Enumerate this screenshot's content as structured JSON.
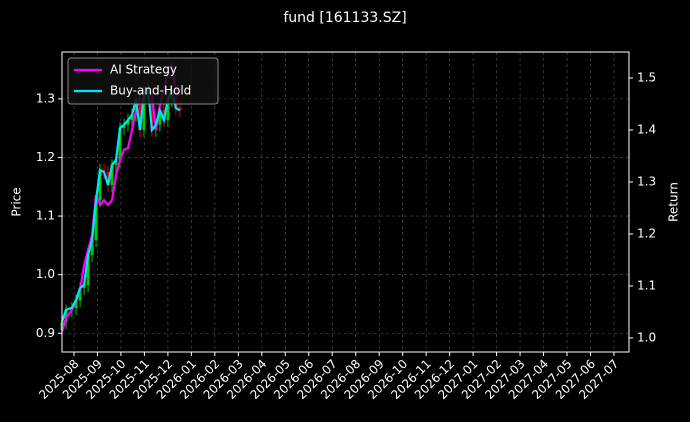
{
  "chart_data": {
    "type": "candlestick",
    "title": "fund [161133.SZ]",
    "ylabel": "Price",
    "y2label": "Return",
    "x": [
      -0.51,
      -0.34,
      -0.09,
      0.09,
      0.26,
      0.43,
      0.6,
      0.77,
      0.94,
      1.11,
      1.28,
      1.45,
      1.62,
      1.79,
      1.96,
      2.13,
      2.3,
      2.47,
      2.64,
      2.81,
      2.98,
      3.15,
      3.32,
      3.49,
      3.66,
      3.83,
      4.0,
      4.17,
      4.34,
      4.51
    ],
    "open": [
      0.905,
      0.919,
      0.939,
      0.943,
      0.956,
      0.977,
      0.982,
      1.033,
      1.059,
      1.127,
      1.179,
      1.175,
      1.153,
      1.187,
      1.196,
      1.25,
      1.256,
      1.264,
      1.273,
      1.298,
      1.247,
      1.307,
      1.319,
      1.247,
      1.256,
      1.281,
      1.264,
      1.298,
      1.315,
      1.285
    ],
    "high": [
      0.929,
      0.949,
      0.953,
      0.966,
      0.987,
      0.992,
      1.043,
      1.069,
      1.137,
      1.189,
      1.189,
      1.185,
      1.197,
      1.206,
      1.26,
      1.266,
      1.274,
      1.283,
      1.308,
      1.308,
      1.317,
      1.329,
      1.329,
      1.266,
      1.291,
      1.291,
      1.308,
      1.325,
      1.325,
      1.295
    ],
    "low": [
      0.875,
      0.907,
      0.927,
      0.931,
      0.944,
      0.965,
      0.97,
      1.021,
      1.047,
      1.115,
      1.163,
      1.141,
      1.141,
      1.175,
      1.184,
      1.238,
      1.244,
      1.252,
      1.261,
      1.235,
      1.235,
      1.295,
      1.235,
      1.235,
      1.244,
      1.252,
      1.252,
      1.286,
      1.273,
      1.269
    ],
    "close": [
      0.919,
      0.939,
      0.943,
      0.956,
      0.977,
      0.982,
      1.033,
      1.059,
      1.127,
      1.179,
      1.175,
      1.153,
      1.187,
      1.196,
      1.25,
      1.256,
      1.264,
      1.273,
      1.298,
      1.247,
      1.307,
      1.319,
      1.247,
      1.256,
      1.281,
      1.264,
      1.298,
      1.315,
      1.285,
      1.281
    ],
    "up_color": "#00c800",
    "down_color": "#e00000",
    "series": [
      {
        "name": "AI Strategy",
        "color": "#ff00ff",
        "axis": "y2",
        "values": [
          1.012,
          1.038,
          1.054,
          1.073,
          1.092,
          1.14,
          1.169,
          1.198,
          1.275,
          1.256,
          1.265,
          1.256,
          1.265,
          1.313,
          1.342,
          1.362,
          1.365,
          1.4,
          1.438,
          1.467,
          1.481,
          1.477,
          1.467,
          1.4,
          1.448,
          1.477,
          1.515,
          1.525,
          1.477,
          1.467
        ]
      },
      {
        "name": "Buy-and-Hold",
        "color": "#00e5ff",
        "axis": "y2",
        "values": [
          1.031,
          1.054,
          1.058,
          1.073,
          1.096,
          1.102,
          1.16,
          1.188,
          1.265,
          1.323,
          1.319,
          1.294,
          1.333,
          1.342,
          1.404,
          1.41,
          1.419,
          1.429,
          1.458,
          1.4,
          1.467,
          1.481,
          1.4,
          1.41,
          1.438,
          1.419,
          1.458,
          1.477,
          1.442,
          1.438
        ]
      }
    ],
    "xlim": [
      -0.51,
      23.64
    ],
    "xticks": [
      {
        "value": 0,
        "label": "2025-08"
      },
      {
        "value": 1,
        "label": "2025-09"
      },
      {
        "value": 2,
        "label": "2025-10"
      },
      {
        "value": 3,
        "label": "2025-11"
      },
      {
        "value": 4,
        "label": "2025-12"
      },
      {
        "value": 5,
        "label": "2026-01"
      },
      {
        "value": 6,
        "label": "2026-02"
      },
      {
        "value": 7,
        "label": "2026-03"
      },
      {
        "value": 8,
        "label": "2026-04"
      },
      {
        "value": 9,
        "label": "2026-05"
      },
      {
        "value": 10,
        "label": "2026-06"
      },
      {
        "value": 11,
        "label": "2026-07"
      },
      {
        "value": 12,
        "label": "2026-08"
      },
      {
        "value": 13,
        "label": "2026-09"
      },
      {
        "value": 14,
        "label": "2026-10"
      },
      {
        "value": 15,
        "label": "2026-11"
      },
      {
        "value": 16,
        "label": "2026-12"
      },
      {
        "value": 17,
        "label": "2027-01"
      },
      {
        "value": 18,
        "label": "2027-02"
      },
      {
        "value": 19,
        "label": "2027-03"
      },
      {
        "value": 20,
        "label": "2027-04"
      },
      {
        "value": 21,
        "label": "2027-05"
      },
      {
        "value": 22,
        "label": "2027-06"
      },
      {
        "value": 23,
        "label": "2027-07"
      }
    ],
    "ylim": [
      0.868,
      1.38
    ],
    "yticks": [
      0.9,
      {
        "value": 1,
        "label": "1.0"
      },
      1.1,
      1.2,
      1.3
    ],
    "y2lim": [
      0.973,
      1.55
    ],
    "y2ticks": [
      {
        "value": 1,
        "label": "1.0"
      },
      1.1,
      1.2,
      1.3,
      1.4,
      1.5
    ],
    "grid": true,
    "legend": "upper left"
  }
}
